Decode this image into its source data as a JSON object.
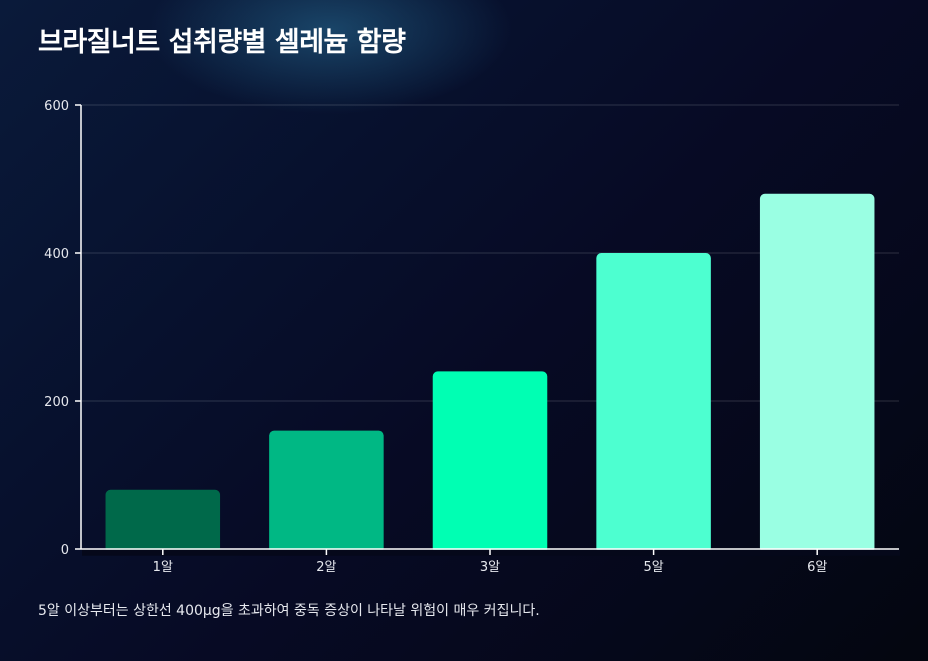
{
  "page": {
    "title": "브라질너트 섭취량별 셀레늄 함량",
    "footnote": "5알 이상부터는 상한선 400μg을 초과하여 중독 증상이 나타날 위험이 매우 커집니다."
  },
  "chart_data": {
    "type": "bar",
    "title": "브라질너트 섭취량별 셀레늄 함량",
    "xlabel": "",
    "ylabel": "",
    "categories": [
      "1알",
      "2알",
      "3알",
      "5알",
      "6알"
    ],
    "values": [
      80,
      160,
      240,
      400,
      480
    ],
    "colors": [
      "#00694a",
      "#00b884",
      "#00ffb3",
      "#4dffd0",
      "#9affe3"
    ],
    "ylim": [
      0,
      600
    ],
    "yticks": [
      "0",
      "200",
      "400",
      "600"
    ],
    "grid": true
  }
}
